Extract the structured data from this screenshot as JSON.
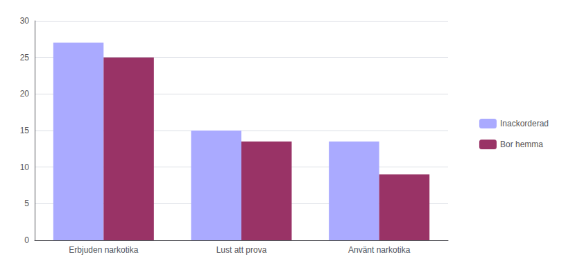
{
  "chart_data": {
    "type": "bar",
    "categories": [
      "Erbjuden narkotika",
      "Lust att prova",
      "Använt narkotika"
    ],
    "series": [
      {
        "name": "Inackorderad",
        "color": "#aaaaff",
        "values": [
          27,
          15,
          13.5
        ]
      },
      {
        "name": "Bor hemma",
        "color": "#993366",
        "values": [
          25,
          13.5,
          9
        ]
      }
    ],
    "ylim": [
      0,
      30
    ],
    "yticks": [
      0,
      5,
      10,
      15,
      20,
      25,
      30
    ],
    "grid": true,
    "legend": "right"
  }
}
